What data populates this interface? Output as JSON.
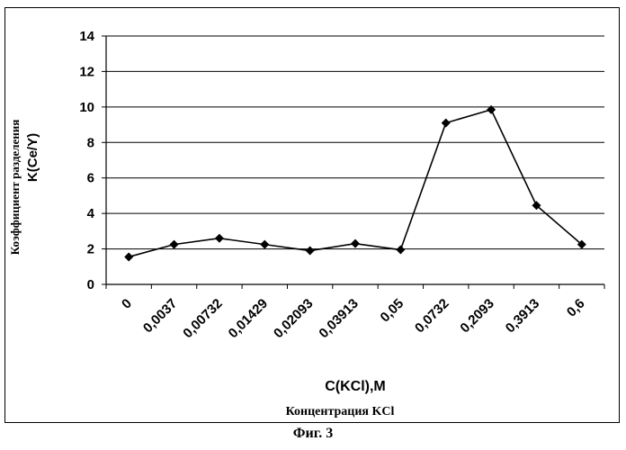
{
  "chart_data": {
    "type": "line",
    "categories": [
      "0",
      "0,0037",
      "0,00732",
      "0,01429",
      "0,02093",
      "0,03913",
      "0,05",
      "0,0732",
      "0,2093",
      "0,3913",
      "0,6"
    ],
    "values": [
      1.55,
      2.25,
      2.6,
      2.25,
      1.9,
      2.3,
      1.95,
      9.1,
      9.85,
      4.45,
      2.25
    ],
    "ylim": [
      0,
      14
    ],
    "yticks": [
      0,
      2,
      4,
      6,
      8,
      10,
      12,
      14
    ],
    "grid": "horizontal",
    "ylabel_line1": "Коэффициент разделения",
    "ylabel_line2": "K(Ce/Y)",
    "xlabel_line1": "C(KCl),M",
    "xlabel_line2": "Концентрация KCl",
    "color": "#000000"
  },
  "caption": "Фиг. 3"
}
